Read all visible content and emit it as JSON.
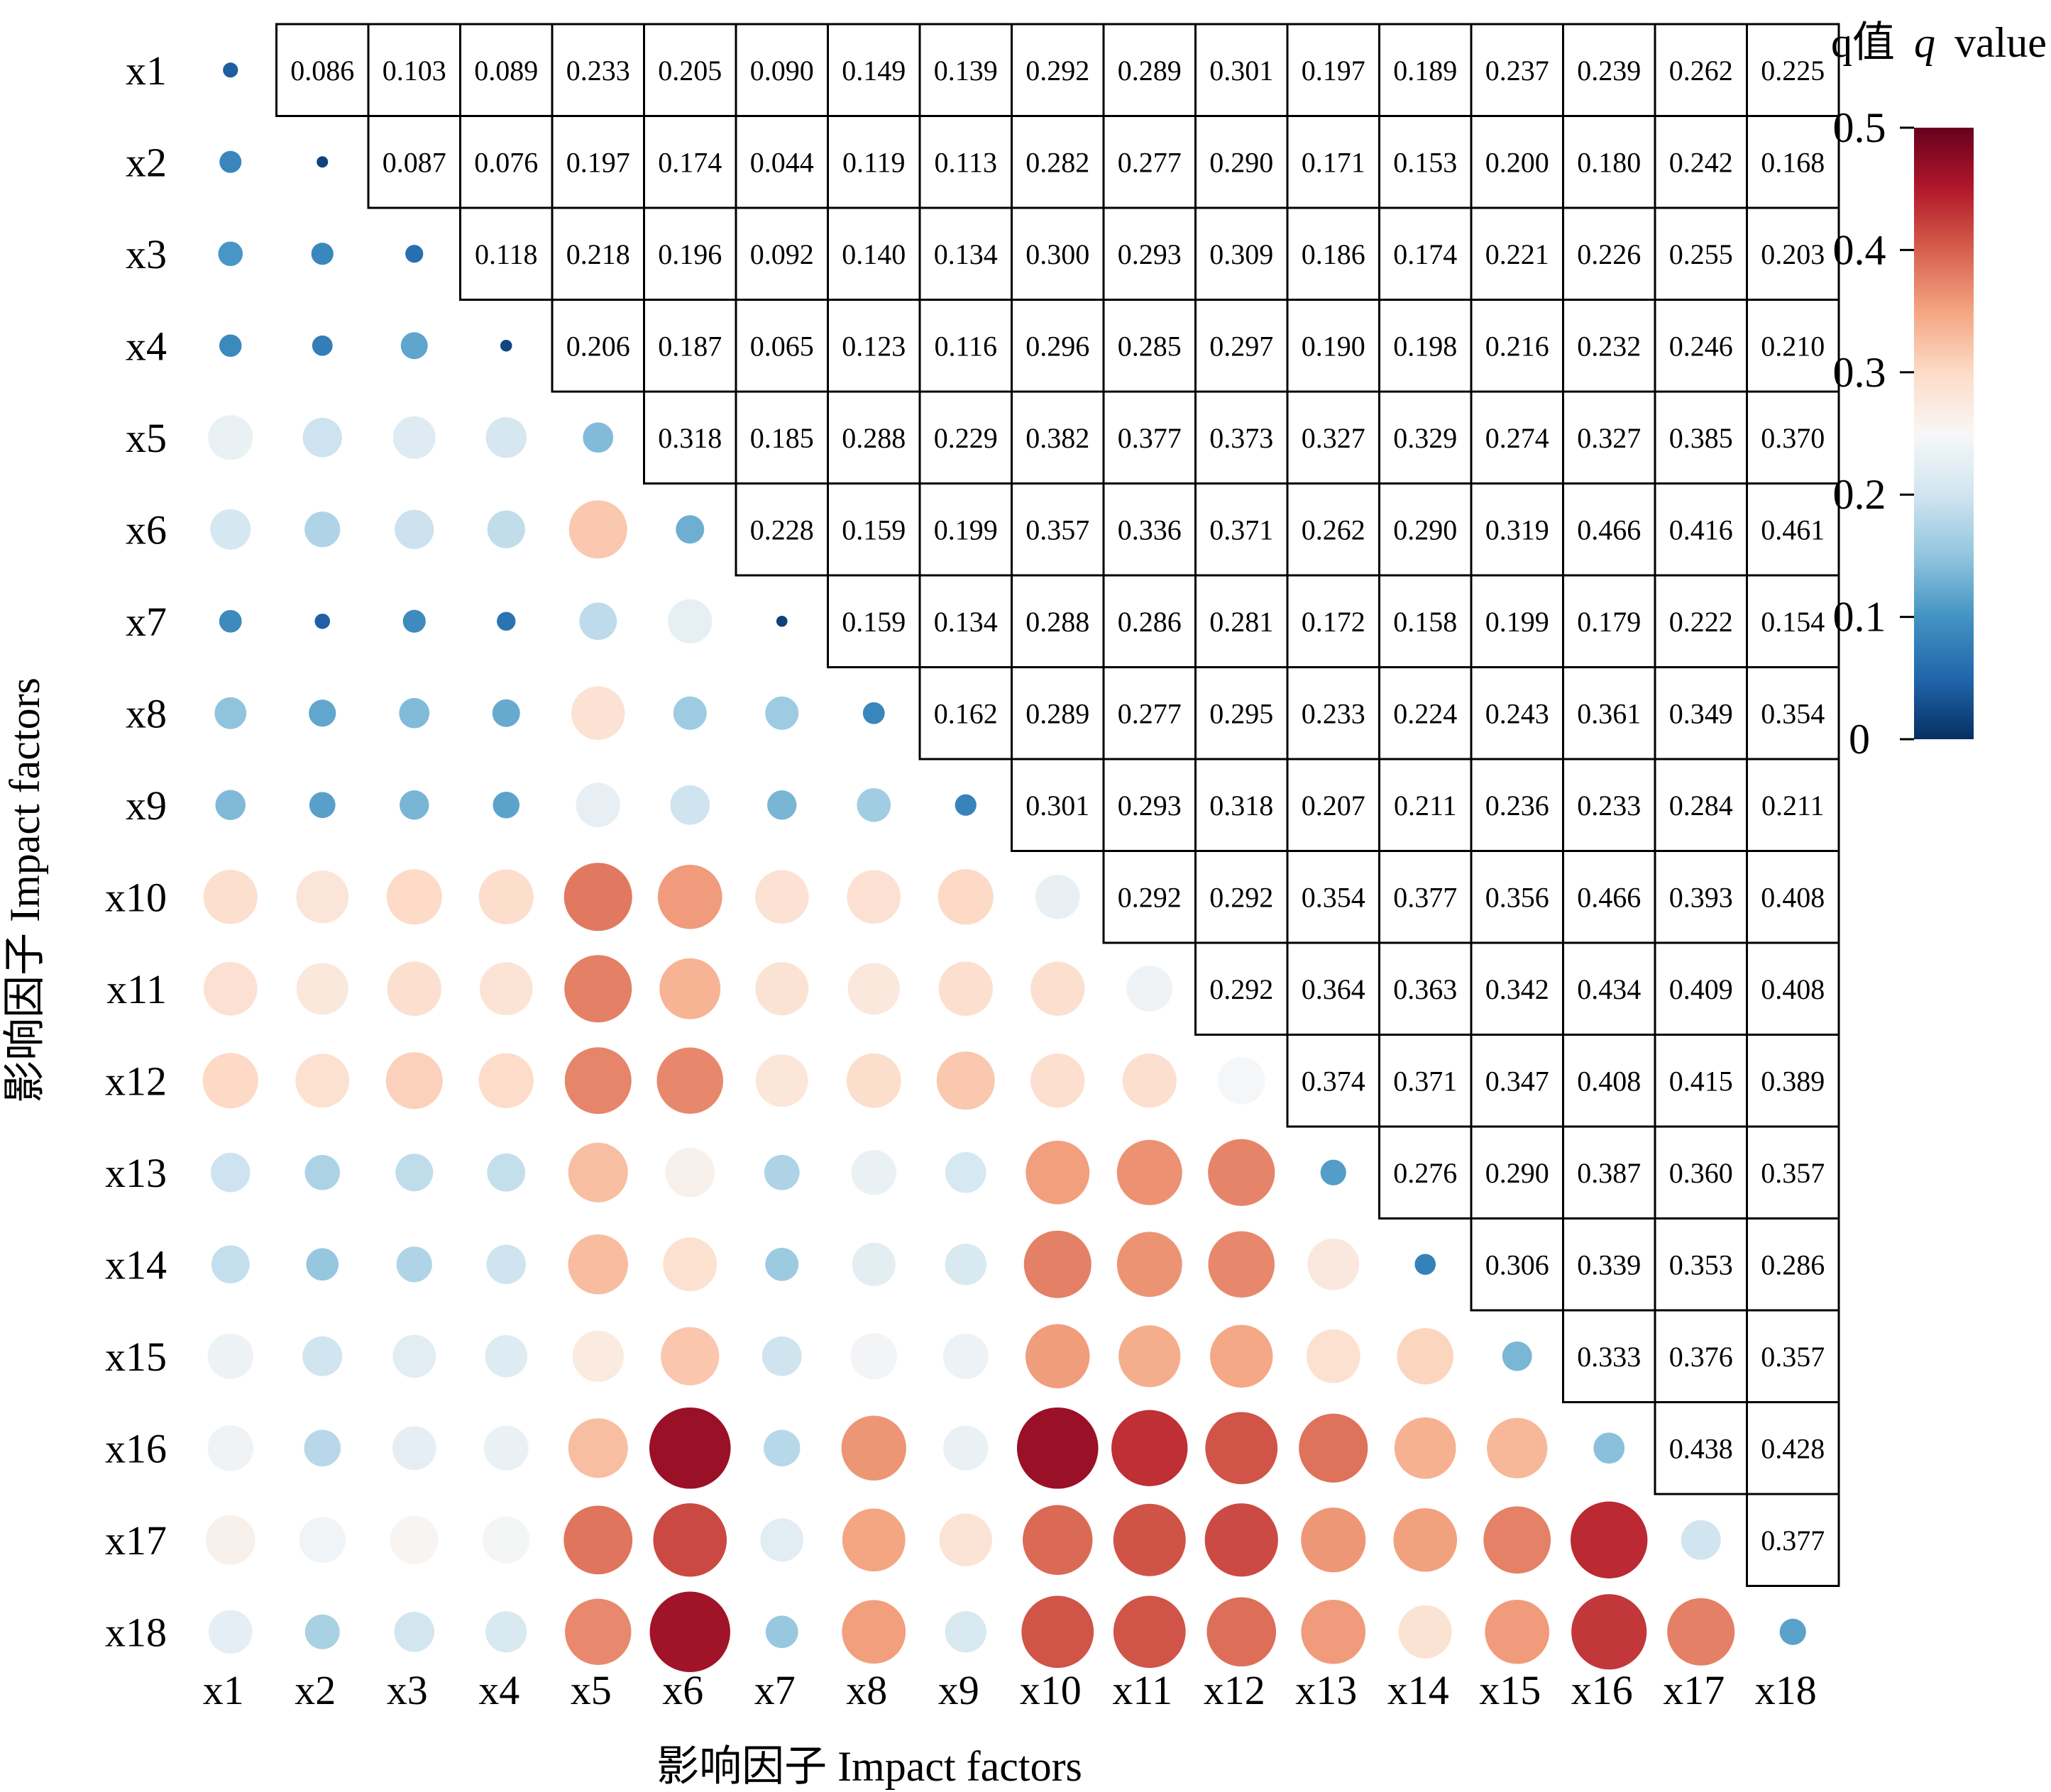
{
  "chart_data": {
    "type": "heatmap",
    "description": "Lower triangle: circles (color and size encode q); diagonal: single-factor q; upper triangle: interaction q values printed.",
    "factors": [
      "x1",
      "x2",
      "x3",
      "x4",
      "x5",
      "x6",
      "x7",
      "x8",
      "x9",
      "x10",
      "x11",
      "x12",
      "x13",
      "x14",
      "x15",
      "x16",
      "x17",
      "x18"
    ],
    "xlabel": "影响因子 Impact factors",
    "ylabel": "影响因子 Impact factors",
    "colorbar": {
      "title_cn": "q值",
      "title_var": "q",
      "title_en": "value",
      "range": [
        0,
        0.5
      ],
      "ticks": [
        "0",
        "0.1",
        "0.2",
        "0.3",
        "0.4",
        "0.5"
      ],
      "colors": [
        "#053061",
        "#2166ac",
        "#4393c3",
        "#92c5de",
        "#d1e5f0",
        "#f7f7f7",
        "#fddbc7",
        "#f4a582",
        "#d6604d",
        "#b2182b",
        "#67001f"
      ]
    },
    "diagonal": [
      "0.042",
      "0.018",
      "0.060",
      "0.021",
      "0.140",
      "0.127",
      "0.016",
      "0.085",
      "0.083",
      "0.230",
      "0.240",
      "0.248",
      "0.110",
      "0.080",
      "0.135",
      "0.145",
      "0.200",
      "0.115"
    ],
    "matrix": [
      [
        "",
        "0.086",
        "0.103",
        "0.089",
        "0.233",
        "0.205",
        "0.090",
        "0.149",
        "0.139",
        "0.292",
        "0.289",
        "0.301",
        "0.197",
        "0.189",
        "0.237",
        "0.239",
        "0.262",
        "0.225"
      ],
      [
        "",
        "",
        "0.087",
        "0.076",
        "0.197",
        "0.174",
        "0.044",
        "0.119",
        "0.113",
        "0.282",
        "0.277",
        "0.290",
        "0.171",
        "0.153",
        "0.200",
        "0.180",
        "0.242",
        "0.168"
      ],
      [
        "",
        "",
        "",
        "0.118",
        "0.218",
        "0.196",
        "0.092",
        "0.140",
        "0.134",
        "0.300",
        "0.293",
        "0.309",
        "0.186",
        "0.174",
        "0.221",
        "0.226",
        "0.255",
        "0.203"
      ],
      [
        "",
        "",
        "",
        "",
        "0.206",
        "0.187",
        "0.065",
        "0.123",
        "0.116",
        "0.296",
        "0.285",
        "0.297",
        "0.190",
        "0.198",
        "0.216",
        "0.232",
        "0.246",
        "0.210"
      ],
      [
        "",
        "",
        "",
        "",
        "",
        "0.318",
        "0.185",
        "0.288",
        "0.229",
        "0.382",
        "0.377",
        "0.373",
        "0.327",
        "0.329",
        "0.274",
        "0.327",
        "0.385",
        "0.370"
      ],
      [
        "",
        "",
        "",
        "",
        "",
        "",
        "0.228",
        "0.159",
        "0.199",
        "0.357",
        "0.336",
        "0.371",
        "0.262",
        "0.290",
        "0.319",
        "0.466",
        "0.416",
        "0.461"
      ],
      [
        "",
        "",
        "",
        "",
        "",
        "",
        "",
        "0.159",
        "0.134",
        "0.288",
        "0.286",
        "0.281",
        "0.172",
        "0.158",
        "0.199",
        "0.179",
        "0.222",
        "0.154"
      ],
      [
        "",
        "",
        "",
        "",
        "",
        "",
        "",
        "",
        "0.162",
        "0.289",
        "0.277",
        "0.295",
        "0.233",
        "0.224",
        "0.243",
        "0.361",
        "0.349",
        "0.354"
      ],
      [
        "",
        "",
        "",
        "",
        "",
        "",
        "",
        "",
        "",
        "0.301",
        "0.293",
        "0.318",
        "0.207",
        "0.211",
        "0.236",
        "0.233",
        "0.284",
        "0.211"
      ],
      [
        "",
        "",
        "",
        "",
        "",
        "",
        "",
        "",
        "",
        "",
        "0.292",
        "0.292",
        "0.354",
        "0.377",
        "0.356",
        "0.466",
        "0.393",
        "0.408"
      ],
      [
        "",
        "",
        "",
        "",
        "",
        "",
        "",
        "",
        "",
        "",
        "",
        "0.292",
        "0.364",
        "0.363",
        "0.342",
        "0.434",
        "0.409",
        "0.408"
      ],
      [
        "",
        "",
        "",
        "",
        "",
        "",
        "",
        "",
        "",
        "",
        "",
        "",
        "0.374",
        "0.371",
        "0.347",
        "0.408",
        "0.415",
        "0.389"
      ],
      [
        "",
        "",
        "",
        "",
        "",
        "",
        "",
        "",
        "",
        "",
        "",
        "",
        "",
        "0.276",
        "0.290",
        "0.387",
        "0.360",
        "0.357"
      ],
      [
        "",
        "",
        "",
        "",
        "",
        "",
        "",
        "",
        "",
        "",
        "",
        "",
        "",
        "",
        "0.306",
        "0.339",
        "0.353",
        "0.286"
      ],
      [
        "",
        "",
        "",
        "",
        "",
        "",
        "",
        "",
        "",
        "",
        "",
        "",
        "",
        "",
        "",
        "0.333",
        "0.376",
        "0.357"
      ],
      [
        "",
        "",
        "",
        "",
        "",
        "",
        "",
        "",
        "",
        "",
        "",
        "",
        "",
        "",
        "",
        "",
        "0.438",
        "0.428"
      ],
      [
        "",
        "",
        "",
        "",
        "",
        "",
        "",
        "",
        "",
        "",
        "",
        "",
        "",
        "",
        "",
        "",
        "",
        "0.377"
      ],
      [
        "",
        "",
        "",
        "",
        "",
        "",
        "",
        "",
        "",
        "",
        "",
        "",
        "",
        "",
        "",
        "",
        "",
        ""
      ]
    ]
  }
}
